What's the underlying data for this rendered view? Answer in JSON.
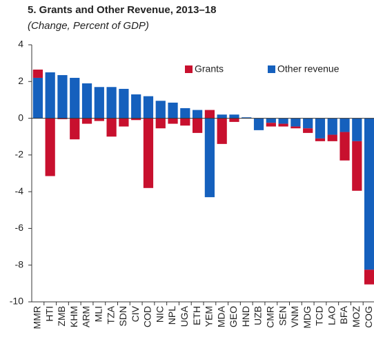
{
  "chart_data": {
    "type": "bar",
    "stacked": true,
    "title": "5. Grants and Other Revenue, 2013–18",
    "subtitle": "(Change, Percent of GDP)",
    "categories": [
      "MMR",
      "HTI",
      "ZMB",
      "KHM",
      "ARM",
      "MLI",
      "TZA",
      "SDN",
      "CIV",
      "COD",
      "NIC",
      "NPL",
      "UGA",
      "ETH",
      "YEM",
      "MDA",
      "GEO",
      "HND",
      "UZB",
      "CMR",
      "SEN",
      "VNM",
      "MDG",
      "TCD",
      "LAO",
      "BFA",
      "MOZ",
      "COG"
    ],
    "series": [
      {
        "name": "Other revenue",
        "color": "#1560bd",
        "values": [
          2.2,
          2.5,
          2.35,
          2.2,
          1.9,
          1.7,
          1.7,
          1.6,
          1.3,
          1.2,
          0.95,
          0.85,
          0.55,
          0.45,
          -4.3,
          0.2,
          0.2,
          0.05,
          -0.65,
          -0.25,
          -0.3,
          -0.45,
          -0.55,
          -1.1,
          -0.9,
          -0.75,
          -1.25,
          -8.25
        ]
      },
      {
        "name": "Grants",
        "color": "#c8102e",
        "values": [
          0.45,
          -3.15,
          -0.05,
          -1.15,
          -0.3,
          -0.15,
          -1.0,
          -0.45,
          -0.1,
          -3.8,
          -0.55,
          -0.3,
          -0.4,
          -0.8,
          0.45,
          -1.4,
          -0.2,
          0,
          0,
          -0.2,
          -0.15,
          -0.1,
          -0.25,
          -0.15,
          -0.35,
          -1.55,
          -2.7,
          -0.8
        ]
      }
    ],
    "ylim": [
      -10,
      4
    ],
    "yticks": [
      -10,
      -8,
      -6,
      -4,
      -2,
      0,
      2,
      4
    ],
    "legend": "top-right"
  }
}
